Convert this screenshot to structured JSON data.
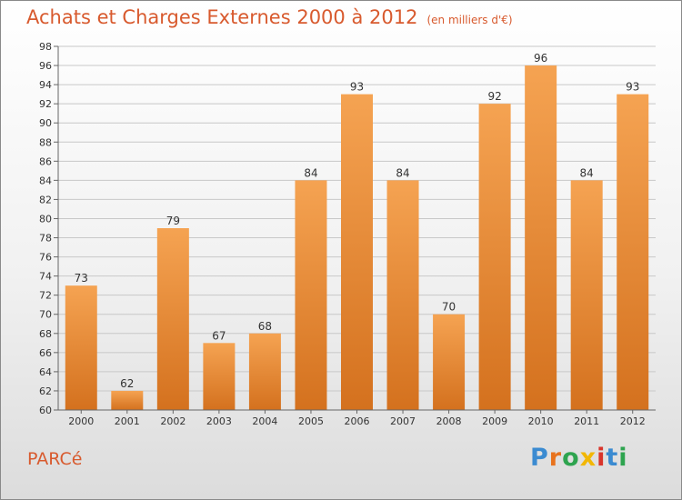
{
  "header": {
    "title": "Achats et Charges Externes 2000 à 2012",
    "subtitle": "(en milliers d'€)"
  },
  "footer": {
    "town": "PARCé",
    "brand": "Proxiti",
    "brand_letters": [
      "P",
      "r",
      "o",
      "x",
      "i",
      "t",
      "i"
    ],
    "brand_colors": [
      "#3b8bd1",
      "#e8731e",
      "#2ea44f",
      "#f2b705",
      "#d9342b",
      "#3b8bd1",
      "#2ea44f"
    ]
  },
  "chart_data": {
    "type": "bar",
    "title": "Achats et Charges Externes 2000 à 2012",
    "subtitle": "(en milliers d'€)",
    "categories": [
      "2000",
      "2001",
      "2002",
      "2003",
      "2004",
      "2005",
      "2006",
      "2007",
      "2008",
      "2009",
      "2010",
      "2011",
      "2012"
    ],
    "values": [
      73,
      62,
      79,
      67,
      68,
      84,
      93,
      84,
      70,
      92,
      96,
      84,
      93
    ],
    "ylim": [
      60,
      98
    ],
    "yticks": [
      60,
      62,
      64,
      66,
      68,
      70,
      72,
      74,
      76,
      78,
      80,
      82,
      84,
      86,
      88,
      90,
      92,
      94,
      96,
      98
    ],
    "grid": true,
    "bar_color_top": "#f5a352",
    "bar_color_bottom": "#d4711e"
  }
}
